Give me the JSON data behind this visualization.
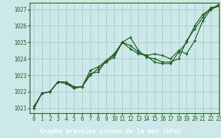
{
  "title": "Graphe pression niveau de la mer (hPa)",
  "bg_color": "#cce8e8",
  "label_bg_color": "#228822",
  "grid_color": "#aacccc",
  "line_color": "#1a5c1a",
  "label_text_color": "#ffffff",
  "xlim": [
    -0.5,
    23
  ],
  "ylim": [
    1020.7,
    1027.4
  ],
  "yticks": [
    1021,
    1022,
    1023,
    1024,
    1025,
    1026,
    1027
  ],
  "xticks": [
    0,
    1,
    2,
    3,
    4,
    5,
    6,
    7,
    8,
    9,
    10,
    11,
    12,
    13,
    14,
    15,
    16,
    17,
    18,
    19,
    20,
    21,
    22,
    23
  ],
  "series": [
    [
      1021.1,
      1021.9,
      1022.0,
      1022.6,
      1022.6,
      1022.3,
      1022.3,
      1023.0,
      1023.4,
      1023.8,
      1024.1,
      1025.0,
      1025.3,
      1024.5,
      1024.1,
      1024.0,
      1023.8,
      1023.8,
      1024.0,
      1025.1,
      1025.8,
      1026.5,
      1027.1,
      1027.2
    ],
    [
      1021.0,
      1021.9,
      1022.0,
      1022.6,
      1022.5,
      1022.3,
      1022.3,
      1023.3,
      1023.5,
      1023.9,
      1024.2,
      1025.0,
      1024.8,
      1024.4,
      1024.2,
      1023.8,
      1023.7,
      1023.7,
      1024.4,
      1025.0,
      1026.0,
      1026.7,
      1027.0,
      1027.2
    ],
    [
      1021.0,
      1021.9,
      1022.0,
      1022.6,
      1022.5,
      1022.2,
      1022.3,
      1023.1,
      1023.2,
      1023.9,
      1024.3,
      1025.0,
      1024.6,
      1024.3,
      1024.2,
      1024.3,
      1024.2,
      1024.0,
      1024.5,
      1024.3,
      1025.1,
      1026.3,
      1027.0,
      1027.3
    ]
  ]
}
